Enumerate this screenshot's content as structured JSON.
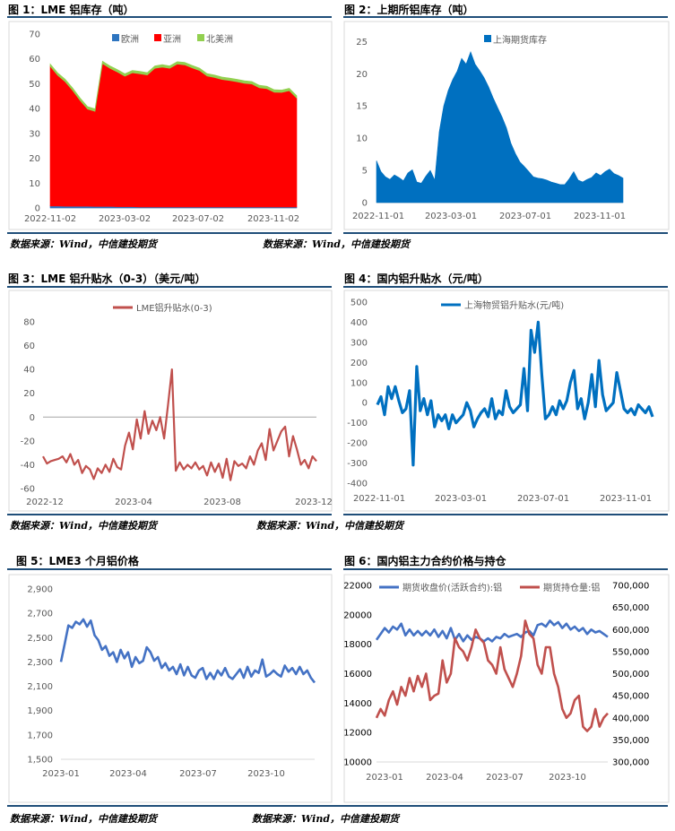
{
  "panels": [
    {
      "title": "图 1：LME 铝库存（吨）",
      "source": "数据来源：Wind，中信建投期货",
      "chart_data": {
        "type": "area",
        "stacked": true,
        "y_ticks": [
          "0",
          "10",
          "20",
          "30",
          "40",
          "50",
          "60",
          "70"
        ],
        "ylim": [
          0,
          70
        ],
        "x_ticks": [
          "2022-11-02",
          "2023-03-02",
          "2023-07-02",
          "2023-11-02"
        ],
        "legend_position": "top",
        "grid": false,
        "series": [
          {
            "name": "欧洲",
            "color": "#2e75c0",
            "values": [
              0.8,
              0.8,
              0.7,
              0.7,
              0.7,
              0.7,
              0.6,
              0.6,
              0.6,
              0.5,
              0.5,
              0.5,
              0.4,
              0.4,
              0.4,
              0.4,
              0.4,
              0.4,
              0.4,
              0.4,
              0.4,
              0.4,
              0.4,
              0.4,
              0.4,
              0.4,
              0.4,
              0.4,
              0.4,
              0.4,
              0.4,
              0.4,
              0.4,
              0.4
            ]
          },
          {
            "name": "亚洲",
            "color": "#ff0000",
            "values": [
              56.2,
              52.6,
              50.1,
              46.6,
              42.6,
              39.1,
              38.3,
              57.5,
              55.6,
              54.2,
              52.5,
              53.9,
              53.6,
              53.1,
              55.8,
              56.3,
              55.8,
              57.5,
              57.2,
              56.0,
              54.9,
              52.7,
              52.1,
              51.3,
              50.9,
              50.4,
              49.8,
              49.5,
              48.0,
              47.6,
              46.2,
              46.1,
              46.8,
              43.8
            ]
          },
          {
            "name": "北美洲",
            "color": "#92d050",
            "values": [
              1.0,
              1.0,
              1.0,
              1.0,
              1.0,
              1.0,
              1.0,
              1.0,
              1.0,
              1.0,
              1.0,
              1.0,
              1.0,
              1.0,
              1.0,
              1.0,
              1.0,
              1.0,
              1.0,
              1.0,
              1.0,
              1.0,
              1.0,
              1.0,
              1.0,
              1.0,
              1.0,
              1.0,
              1.0,
              1.0,
              1.0,
              1.0,
              1.0,
              1.0
            ]
          }
        ]
      }
    },
    {
      "title": "图 2：上期所铝库存（吨）",
      "source": "数据来源：Wind，中信建投期货",
      "chart_data": {
        "type": "area",
        "y_ticks": [
          "0",
          "5",
          "10",
          "15",
          "20",
          "25"
        ],
        "ylim": [
          0,
          27
        ],
        "x_ticks": [
          "2022-11-01",
          "2023-03-01",
          "2023-07-01",
          "2023-11-01"
        ],
        "legend_position": "top",
        "grid": false,
        "series": [
          {
            "name": "上海期货库存",
            "color": "#0070c0",
            "values": [
              6.5,
              4.8,
              4.0,
              3.6,
              4.3,
              3.9,
              3.4,
              4.6,
              5.1,
              3.2,
              3.0,
              4.1,
              5.0,
              3.5,
              11.0,
              15.0,
              17.4,
              19.1,
              20.4,
              22.4,
              21.5,
              23.4,
              21.5,
              20.5,
              19.4,
              18.0,
              16.3,
              14.8,
              13.3,
              11.6,
              9.2,
              7.6,
              6.3,
              5.6,
              4.8,
              4.0,
              3.8,
              3.7,
              3.5,
              3.2,
              3.0,
              2.8,
              2.8,
              3.7,
              4.8,
              3.5,
              3.2,
              3.6,
              3.9,
              4.6,
              4.2,
              4.8,
              5.2,
              4.5,
              4.2,
              3.8
            ]
          }
        ]
      }
    },
    {
      "title": "图 3：LME 铝升贴水（0-3）（美元/吨）",
      "source": "数据来源：Wind，中信建投期货",
      "chart_data": {
        "type": "line",
        "y_ticks": [
          "80",
          "60",
          "40",
          "20",
          "0",
          "-20",
          "-40",
          "-60"
        ],
        "ylim": [
          -60,
          80
        ],
        "x_ticks": [
          "2022-12",
          "2023-04",
          "2023-08",
          "2023-12"
        ],
        "legend_position": "top",
        "grid": false,
        "series": [
          {
            "name": "LME铝升贴水(0-3)",
            "color": "#c0504d",
            "values": [
              -33,
              -39,
              -37,
              -36,
              -35,
              -33,
              -38,
              -31,
              -40,
              -36,
              -47,
              -41,
              -44,
              -52,
              -43,
              -47,
              -40,
              -46,
              -35,
              -42,
              -44,
              -24,
              -13,
              -27,
              -2,
              -18,
              5,
              -14,
              -3,
              -11,
              0,
              -18,
              10,
              40,
              -45,
              -38,
              -44,
              -40,
              -43,
              -38,
              -44,
              -41,
              -49,
              -38,
              -46,
              -39,
              -51,
              -35,
              -53,
              -37,
              -41,
              -39,
              -43,
              -33,
              -40,
              -28,
              -22,
              -36,
              -10,
              -28,
              -20,
              -12,
              -8,
              -33,
              -16,
              -27,
              -40,
              -36,
              -43,
              -33,
              -37
            ]
          }
        ]
      }
    },
    {
      "title": "图 4：国内铝升贴水（元/吨）",
      "source": "数据来源：Wind，中信建投期货",
      "chart_data": {
        "type": "line",
        "y_ticks": [
          "500",
          "400",
          "300",
          "200",
          "100",
          "0",
          "-100",
          "-200",
          "-300",
          "-400"
        ],
        "ylim": [
          -400,
          500
        ],
        "x_ticks": [
          "2022-11-01",
          "2023-03-01",
          "2023-07-01",
          "2023-11-01"
        ],
        "legend_position": "top",
        "grid": false,
        "series": [
          {
            "name": "上海物贸铝升贴水(元/吨)",
            "color": "#0070c0",
            "values": [
              -10,
              30,
              -60,
              80,
              20,
              80,
              10,
              -50,
              -30,
              60,
              -310,
              180,
              -40,
              20,
              -60,
              10,
              -120,
              -60,
              -90,
              -60,
              -130,
              -60,
              -100,
              -80,
              -60,
              0,
              -40,
              -120,
              -80,
              -50,
              -30,
              -70,
              20,
              -80,
              -40,
              -60,
              60,
              -20,
              -50,
              -30,
              -10,
              170,
              -40,
              360,
              250,
              400,
              140,
              -80,
              -60,
              -20,
              -60,
              10,
              -30,
              10,
              100,
              160,
              -30,
              20,
              -80,
              0,
              140,
              -20,
              210,
              40,
              -40,
              -20,
              0,
              150,
              60,
              -30,
              -50,
              -30,
              -60,
              -10,
              -30,
              -50,
              -20,
              -70
            ]
          }
        ]
      }
    },
    {
      "title": "图 5：LME3 个月铝价格",
      "source": "数据来源：Wind，中信建投期货",
      "chart_data": {
        "type": "line",
        "y_ticks": [
          "2,900",
          "2,700",
          "2,500",
          "2,300",
          "2,100",
          "1,900",
          "1,700",
          "1,500"
        ],
        "ylim": [
          1500,
          2900
        ],
        "x_ticks": [
          "2023-01",
          "2023-04",
          "2023-07",
          "2023-10"
        ],
        "legend_position": "none",
        "grid": false,
        "series": [
          {
            "name": "",
            "color": "#4472c4",
            "values": [
              2300,
              2450,
              2600,
              2580,
              2630,
              2610,
              2650,
              2590,
              2640,
              2520,
              2480,
              2400,
              2430,
              2350,
              2380,
              2300,
              2400,
              2330,
              2380,
              2260,
              2340,
              2290,
              2310,
              2420,
              2380,
              2310,
              2340,
              2250,
              2290,
              2230,
              2260,
              2200,
              2280,
              2190,
              2260,
              2190,
              2170,
              2230,
              2250,
              2160,
              2210,
              2160,
              2230,
              2190,
              2250,
              2180,
              2160,
              2200,
              2240,
              2170,
              2260,
              2180,
              2230,
              2210,
              2320,
              2180,
              2200,
              2230,
              2200,
              2180,
              2270,
              2220,
              2250,
              2200,
              2260,
              2200,
              2230,
              2170,
              2130
            ]
          }
        ]
      }
    },
    {
      "title": "图 6：国内铝主力合约价格与持仓",
      "source": "数据来源：Wind，中信建投期货",
      "chart_data": {
        "type": "line",
        "y_left_ticks": [
          "22000",
          "20000",
          "18000",
          "16000",
          "14000",
          "12000",
          "10000"
        ],
        "y_right_ticks": [
          "700,000",
          "650,000",
          "600,000",
          "550,000",
          "500,000",
          "450,000",
          "400,000",
          "350,000",
          "300,000"
        ],
        "ylim_left": [
          10000,
          22000
        ],
        "ylim_right": [
          300000,
          700000
        ],
        "x_ticks": [
          "2023-01",
          "2023-04",
          "2023-07",
          "2023-10"
        ],
        "legend_position": "top",
        "grid": false,
        "series": [
          {
            "name": "期货收盘价(活跃合约):铝",
            "axis": "left",
            "color": "#4472c4",
            "values": [
              18300,
              18700,
              19100,
              18800,
              19200,
              19000,
              19400,
              18600,
              19000,
              18600,
              18900,
              18600,
              18900,
              18600,
              19000,
              18500,
              18900,
              18400,
              19100,
              18300,
              18700,
              18200,
              18600,
              18300,
              18500,
              18400,
              18200,
              18400,
              18200,
              18500,
              18400,
              18700,
              18500,
              18600,
              18700,
              18500,
              18800,
              18900,
              18600,
              19300,
              19400,
              19200,
              19600,
              19300,
              19500,
              19100,
              19400,
              19000,
              19200,
              18900,
              19100,
              18700,
              19000,
              18800,
              18900,
              18700,
              18500
            ]
          },
          {
            "name": "期货持仓量:铝",
            "axis": "right",
            "color": "#c0504d",
            "values": [
              400000,
              420000,
              405000,
              440000,
              460000,
              430000,
              470000,
              450000,
              490000,
              460000,
              495000,
              470000,
              500000,
              440000,
              450000,
              455000,
              530000,
              480000,
              500000,
              580000,
              560000,
              550000,
              530000,
              560000,
              600000,
              580000,
              570000,
              530000,
              520000,
              500000,
              560000,
              510000,
              490000,
              470000,
              500000,
              540000,
              620000,
              590000,
              580000,
              520000,
              500000,
              560000,
              560000,
              500000,
              470000,
              420000,
              400000,
              410000,
              440000,
              450000,
              380000,
              370000,
              380000,
              420000,
              380000,
              400000,
              410000
            ]
          }
        ]
      }
    }
  ]
}
